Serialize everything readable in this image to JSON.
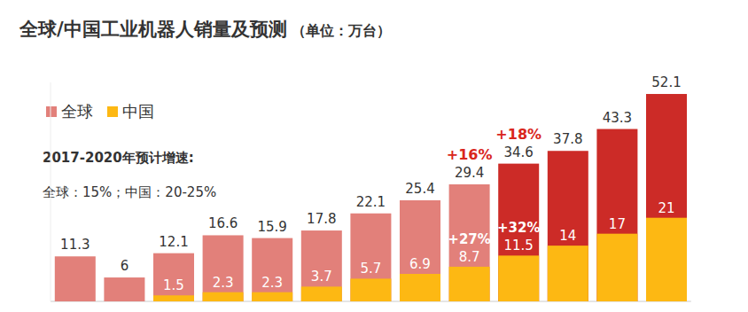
{
  "chart_data": {
    "type": "bar",
    "title": "全球/中国工业机器人销量及预测",
    "subtitle": "（单位：万台）",
    "categories": [
      null,
      null,
      null,
      null,
      null,
      null,
      null,
      null,
      null,
      null,
      null,
      null,
      null
    ],
    "series": [
      {
        "name": "全球",
        "color": "#e2807a",
        "colors": [
          "#e2807a",
          "#e2807a",
          "#e2807a",
          "#e2807a",
          "#e2807a",
          "#e2807a",
          "#e2807a",
          "#e2807a",
          "#e2807a",
          "#cc2b27",
          "#cc2b27",
          "#cc2b27",
          "#cc2b27"
        ],
        "values": [
          11.3,
          6,
          12.1,
          16.6,
          15.9,
          17.8,
          22.1,
          25.4,
          29.4,
          34.6,
          37.8,
          43.3,
          52.1
        ]
      },
      {
        "name": "中国",
        "color": "#fdb813",
        "values": [
          null,
          null,
          1.5,
          2.3,
          2.3,
          3.7,
          5.7,
          6.9,
          8.7,
          11.5,
          14,
          17,
          21
        ]
      }
    ],
    "notes": [
      "2017-2020年预计增速:",
      "全球：15%；中国：20-25%"
    ],
    "annotations": [
      {
        "text": "+16%",
        "index": 8,
        "series": 0
      },
      {
        "text": "+18%",
        "index": 9,
        "series": 0
      },
      {
        "text": "+27%",
        "index": 8,
        "series": 1
      },
      {
        "text": "+32%",
        "index": 9,
        "series": 1
      }
    ],
    "ylim": [
      0,
      55
    ],
    "yticks": [],
    "stacked": false,
    "data_labels": true,
    "tick_labels": false,
    "grid": false,
    "legend": "upper left"
  }
}
